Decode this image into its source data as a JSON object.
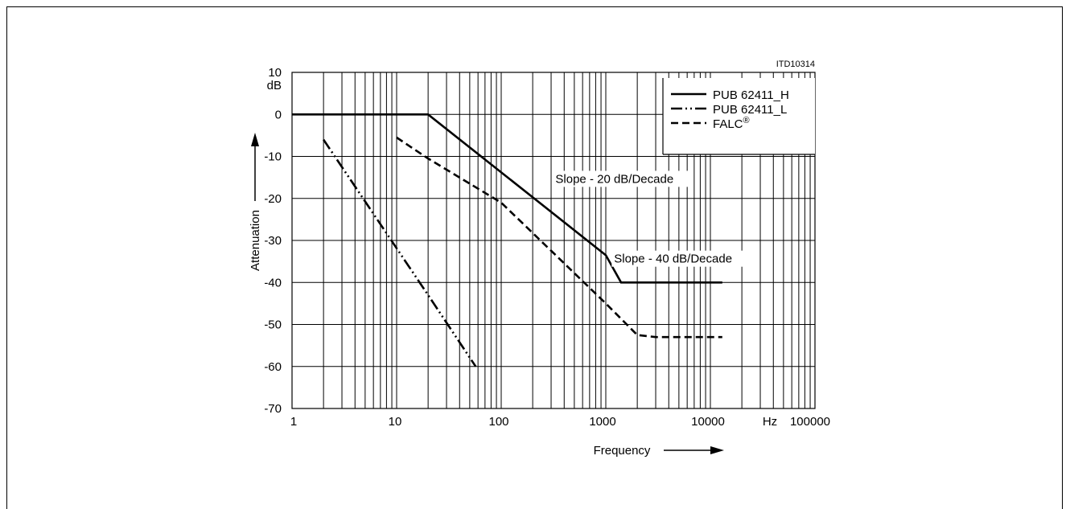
{
  "chart_data": {
    "type": "line",
    "figure_id": "ITD10314",
    "title": "",
    "xlabel": "Frequency",
    "ylabel": "Attenuation",
    "y_unit": "dB",
    "x_unit": "Hz",
    "x_scale": "log",
    "xlim": [
      1,
      100000
    ],
    "ylim": [
      -70,
      10
    ],
    "x_tick_labels": [
      "1",
      "10",
      "100",
      "1000",
      "10000",
      "100000"
    ],
    "y_tick_labels": [
      "10",
      "0",
      "-10",
      "-20",
      "-30",
      "-40",
      "-50",
      "-60",
      "-70"
    ],
    "grid": true,
    "legend_position": "top-right",
    "series": [
      {
        "name": "PUB 62411_H",
        "style": "solid",
        "x": [
          1,
          20,
          1000,
          1400,
          13000
        ],
        "y": [
          0,
          0,
          -33.5,
          -40,
          -40
        ]
      },
      {
        "name": "PUB 62411_L",
        "style": "dash-dot-dot",
        "x": [
          2,
          20,
          57
        ],
        "y": [
          -6,
          -43,
          -60
        ]
      },
      {
        "name": "FALC",
        "name_superscript": "®",
        "style": "dashed",
        "x": [
          10,
          20,
          100,
          1000,
          2000,
          3000,
          13000
        ],
        "y": [
          -5.5,
          -10.5,
          -21,
          -45,
          -52.5,
          -53,
          -53
        ]
      }
    ],
    "annotations": [
      {
        "text": "Slope - 20 dB/Decade",
        "x": 330,
        "y": -16.3
      },
      {
        "text": "Slope - 40 dB/Decade",
        "x": 1200,
        "y": -35.3
      }
    ]
  }
}
